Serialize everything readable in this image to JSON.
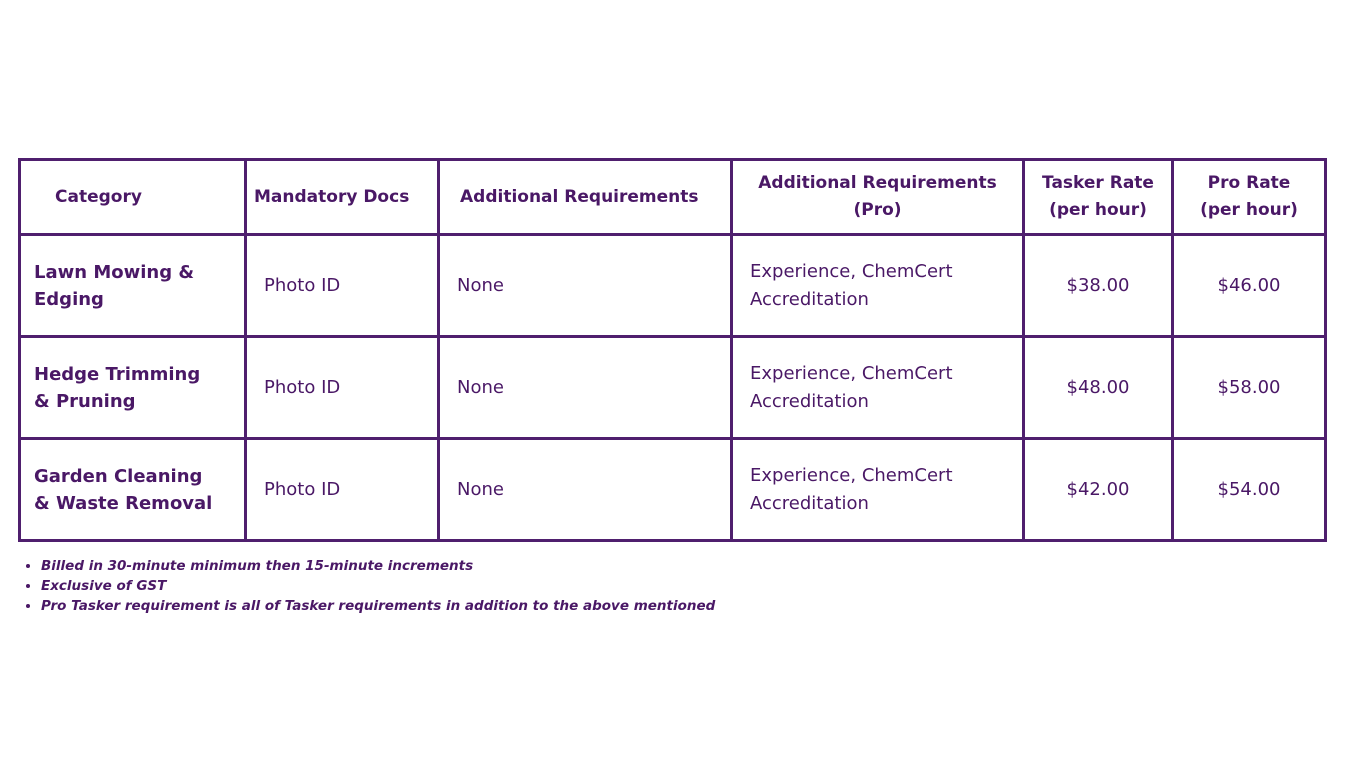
{
  "table": {
    "header": [
      "Category",
      "Mandatory Docs",
      "Additional Requirements",
      "Additional Requirements (Pro)",
      "Tasker Rate (per hour)",
      "Pro Rate (per hour)"
    ],
    "rows": [
      [
        "Lawn Mowing & Edging",
        "Photo ID",
        "None",
        "Experience, ChemCert Accreditation",
        "$38.00",
        "$46.00"
      ],
      [
        "Hedge Trimming & Pruning",
        "Photo ID",
        "None",
        "Experience, ChemCert Accreditation",
        "$48.00",
        "$58.00"
      ],
      [
        "Garden Cleaning & Waste Removal",
        "Photo ID",
        "None",
        "Experience, ChemCert Accreditation",
        "$42.00",
        "$54.00"
      ]
    ]
  },
  "notes": [
    "Billed in 30-minute minimum then 15-minute increments",
    "Exclusive of GST",
    "Pro Tasker requirement is all of Tasker requirements in addition to the above mentioned"
  ]
}
